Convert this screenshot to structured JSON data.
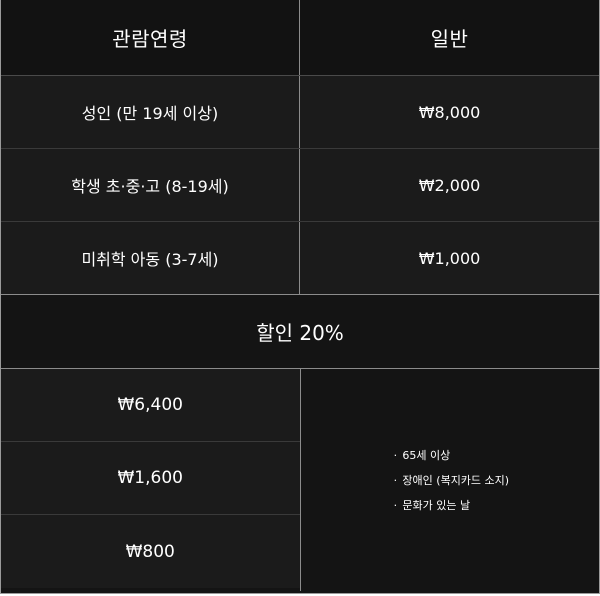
{
  "header": {
    "col1": "관람연령",
    "col2": "일반"
  },
  "rows": [
    {
      "age": "성인 (만 19세 이상)",
      "price": "₩8,000"
    },
    {
      "age": "학생 초·중·고 (8-19세)",
      "price": "₩2,000"
    },
    {
      "age": "미취학 아동 (3-7세)",
      "price": "₩1,000"
    }
  ],
  "discount": {
    "title": "할인 20%",
    "prices": [
      "₩6,400",
      "₩1,600",
      "₩800"
    ],
    "bullet": "·",
    "notes": [
      "65세 이상",
      "장애인 (복지카드 소지)",
      "문화가 있는 날"
    ]
  }
}
